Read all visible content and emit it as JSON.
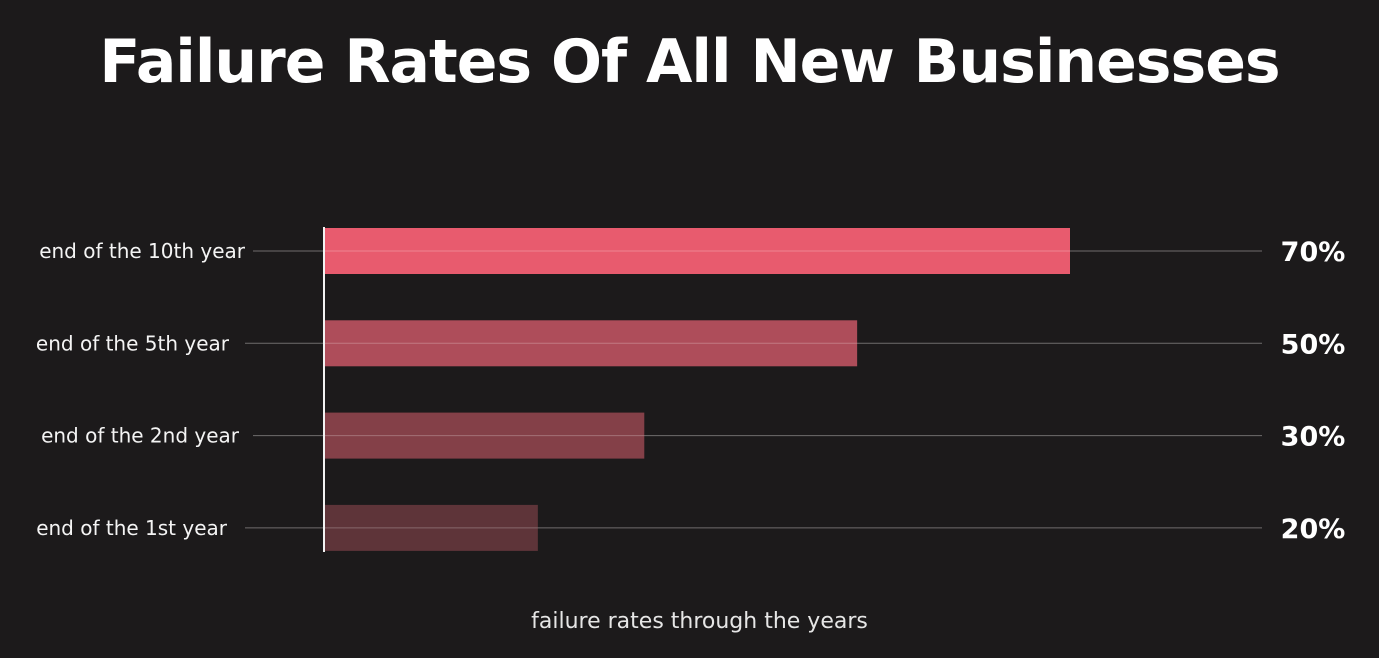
{
  "chart_data": {
    "type": "bar",
    "orientation": "horizontal",
    "title": "Failure Rates Of All New Businesses",
    "xlabel": "failure rates through the years",
    "ylabel": "",
    "categories": [
      "end of the 10th year",
      "end of the 5th year",
      "end of the 2nd year",
      "end of the 1st year"
    ],
    "values": [
      70,
      50,
      30,
      20
    ],
    "value_labels": [
      "70%",
      "50%",
      "30%",
      "20%"
    ],
    "unit": "%",
    "xlim": [
      0,
      100
    ],
    "grid": true,
    "legend": "none",
    "colors": [
      "#e85b6e",
      "#ae4d5a",
      "#844048",
      "#5e3439"
    ],
    "background": "#1c1a1b"
  }
}
